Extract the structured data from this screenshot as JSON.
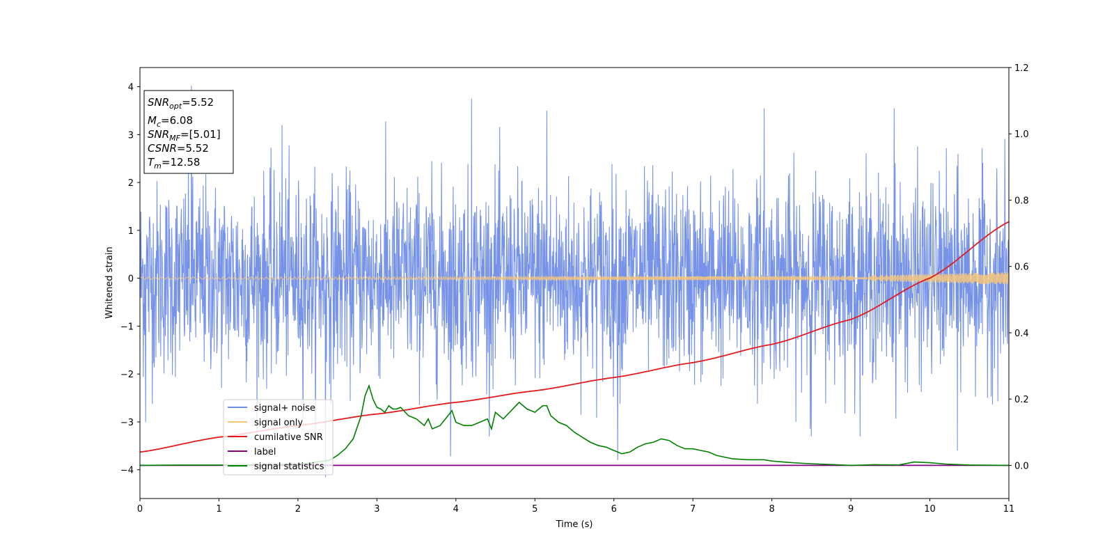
{
  "chart_data": {
    "type": "line",
    "xlabel": "Time (s)",
    "ylabel": "Whitened strain",
    "xlim": [
      0,
      11
    ],
    "ylim": [
      -4.6,
      4.4
    ],
    "ylim_right": [
      -0.1,
      1.2
    ],
    "x_ticks": [
      "0",
      "1",
      "2",
      "3",
      "4",
      "5",
      "6",
      "7",
      "8",
      "9",
      "10",
      "11"
    ],
    "y_ticks": [
      "4",
      "3",
      "2",
      "1",
      "0",
      "−1",
      "−2",
      "−3",
      "−4"
    ],
    "y_tick_values": [
      4,
      3,
      2,
      1,
      0,
      -1,
      -2,
      -3,
      -4
    ],
    "y_right_ticks": [
      "1.2",
      "1.0",
      "0.8",
      "0.6",
      "0.4",
      "0.2",
      "0.0"
    ],
    "y_right_tick_values": [
      1.2,
      1.0,
      0.8,
      0.6,
      0.4,
      0.2,
      0.0
    ],
    "grid": false,
    "legend_position": "lower-left",
    "info_box": {
      "snr_opt": {
        "name": "SNR",
        "sub": "opt",
        "value": "=5.52"
      },
      "mc": {
        "name": "M",
        "sub": "c",
        "value": "=6.08"
      },
      "snr_mf": {
        "name": "SNR",
        "sub": "MF",
        "value": "=[5.01]"
      },
      "csnr": {
        "name": "CSNR",
        "value": "=5.52"
      },
      "tm": {
        "name": "T",
        "sub": "m",
        "value": "=12.58"
      }
    },
    "series": [
      {
        "name": "signal+ noise",
        "color": "#6f8de8",
        "axis": "left",
        "description_values": {
          "approx_std": 1.0,
          "min": -4.15,
          "max": 4.02
        },
        "spikes": [
          [
            0.65,
            4.02
          ],
          [
            2.35,
            -4.15
          ],
          [
            4.2,
            3.75
          ],
          [
            3.93,
            -3.72
          ],
          [
            6.05,
            -3.8
          ],
          [
            9.55,
            3.55
          ],
          [
            10.35,
            -3.6
          ],
          [
            1.8,
            3.2
          ],
          [
            5.15,
            3.5
          ],
          [
            7.9,
            3.55
          ],
          [
            8.5,
            -3.3
          ],
          [
            0.07,
            -3.0
          ]
        ]
      },
      {
        "name": "signal only",
        "color": "#f5c57a",
        "axis": "left",
        "envelope": {
          "x": [
            0,
            4,
            7,
            9,
            10,
            11
          ],
          "amp": [
            0.02,
            0.03,
            0.04,
            0.05,
            0.09,
            0.13
          ]
        }
      },
      {
        "name": "cumilative SNR",
        "color": "#e31a1c",
        "axis": "right",
        "x": [
          0,
          1,
          2,
          3,
          4,
          5,
          6,
          7,
          8,
          9,
          10,
          11
        ],
        "y": [
          0.04,
          0.085,
          0.12,
          0.155,
          0.19,
          0.225,
          0.265,
          0.31,
          0.365,
          0.44,
          0.565,
          0.735
        ]
      },
      {
        "name": "label",
        "color": "#800080",
        "axis": "right",
        "x": [
          0,
          11
        ],
        "y": [
          0.0,
          0.0
        ]
      },
      {
        "name": "signal statistics",
        "color": "#008000",
        "axis": "right",
        "x": [
          0,
          0.5,
          1.0,
          1.5,
          2.0,
          2.4,
          2.5,
          2.6,
          2.7,
          2.8,
          2.85,
          2.9,
          2.95,
          3.0,
          3.05,
          3.1,
          3.15,
          3.2,
          3.25,
          3.3,
          3.4,
          3.5,
          3.6,
          3.65,
          3.7,
          3.8,
          3.9,
          3.95,
          4.0,
          4.1,
          4.2,
          4.3,
          4.4,
          4.45,
          4.5,
          4.6,
          4.7,
          4.8,
          4.9,
          5.0,
          5.05,
          5.1,
          5.15,
          5.2,
          5.3,
          5.4,
          5.5,
          5.6,
          5.7,
          5.8,
          5.9,
          6.0,
          6.1,
          6.2,
          6.3,
          6.4,
          6.5,
          6.6,
          6.7,
          6.8,
          6.9,
          7.0,
          7.1,
          7.2,
          7.3,
          7.5,
          7.7,
          7.9,
          8.0,
          8.2,
          8.4,
          8.6,
          8.8,
          9.0,
          9.3,
          9.6,
          9.8,
          10.0,
          10.2,
          10.5,
          11.0
        ],
        "y": [
          0.0,
          0.001,
          0.001,
          0.002,
          0.003,
          0.015,
          0.03,
          0.05,
          0.08,
          0.15,
          0.21,
          0.24,
          0.2,
          0.175,
          0.17,
          0.16,
          0.18,
          0.17,
          0.17,
          0.175,
          0.15,
          0.14,
          0.12,
          0.14,
          0.11,
          0.12,
          0.15,
          0.165,
          0.13,
          0.12,
          0.12,
          0.13,
          0.14,
          0.11,
          0.16,
          0.14,
          0.165,
          0.19,
          0.17,
          0.16,
          0.17,
          0.18,
          0.18,
          0.15,
          0.13,
          0.12,
          0.1,
          0.085,
          0.07,
          0.06,
          0.055,
          0.045,
          0.035,
          0.04,
          0.055,
          0.065,
          0.07,
          0.08,
          0.075,
          0.06,
          0.05,
          0.05,
          0.045,
          0.04,
          0.03,
          0.02,
          0.017,
          0.017,
          0.013,
          0.009,
          0.006,
          0.004,
          0.002,
          0.0,
          0.002,
          0.001,
          0.01,
          0.008,
          0.004,
          0.001,
          0.0
        ]
      }
    ]
  }
}
